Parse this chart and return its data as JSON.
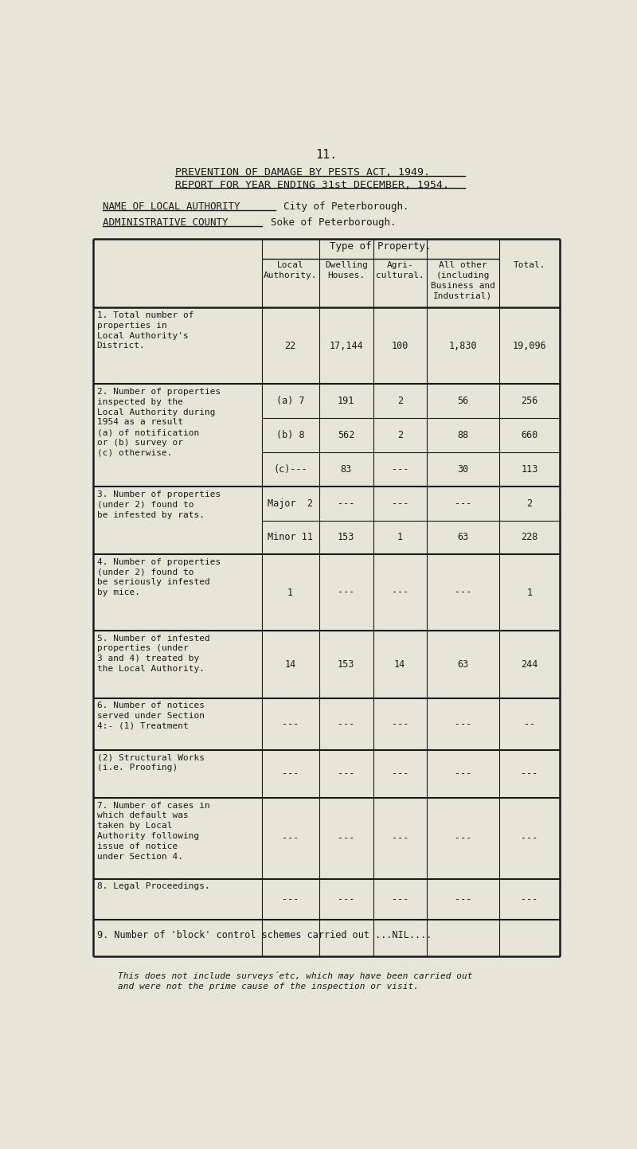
{
  "page_number": "11.",
  "title_line1": "PREVENTION OF DAMAGE BY PESTS ACT, 1949.",
  "title_line2": "REPORT FOR YEAR ENDING 31st DECEMBER, 1954.",
  "name_label": "NAME OF LOCAL AUTHORITY",
  "name_value": "City of Peterborough.",
  "county_label": "ADMINISTRATIVE COUNTY",
  "county_value": "Soke of Peterborough.",
  "col_headers": [
    "Local\nAuthority.",
    "Dwelling\nHouses.",
    "Agri-\ncultural.",
    "All other\n(including\nBusiness and\nIndustrial)",
    "Total."
  ],
  "type_of_property_label": "Type of Property.",
  "bg_color": "#e8e4d8",
  "text_color": "#1a1a1a",
  "footnote_line1": "This does not include surveys",
  "footnote": "This does not include surveys´etc, which may have been carried out\nand were not the prime cause of the inspection or visit.",
  "rows": [
    {
      "number": "1.",
      "label": "Total number of\nproperties in\nLocal Authority's\nDistrict.",
      "subrows": [
        {
          "sub_label": "22",
          "values": [
            "17,144",
            "100",
            "1,830",
            "19,096"
          ]
        }
      ]
    },
    {
      "number": "2.",
      "label": "Number of properties\ninspected by the\nLocal Authority during\n1954 as a result\n(a) of notification\nor (b) survey or\n(c) otherwise.",
      "subrows": [
        {
          "sub_label": "(a) 7",
          "values": [
            "191",
            "2",
            "56",
            "256"
          ]
        },
        {
          "sub_label": "(b) 8",
          "values": [
            "562",
            "2",
            "88",
            "660"
          ]
        },
        {
          "sub_label": "(c)---",
          "values": [
            "83",
            "---",
            "30",
            "113"
          ]
        }
      ]
    },
    {
      "number": "3.",
      "label": "Number of properties\n(under 2) found to\nbe infested by rats.",
      "subrows": [
        {
          "sub_label": "Major  2",
          "values": [
            "---",
            "---",
            "---",
            "2"
          ]
        },
        {
          "sub_label": "Minor 11",
          "values": [
            "153",
            "1",
            "63",
            "228"
          ]
        }
      ]
    },
    {
      "number": "4.",
      "label": "Number of properties\n(under 2) found to\nbe seriously infested\nby mice.",
      "subrows": [
        {
          "sub_label": "1",
          "values": [
            "---",
            "---",
            "---",
            "1"
          ]
        }
      ]
    },
    {
      "number": "5.",
      "label": "Number of infested\nproperties (under\n3 and 4) treated by\nthe Local Authority.",
      "subrows": [
        {
          "sub_label": "14",
          "values": [
            "153",
            "14",
            "63",
            "244"
          ]
        }
      ]
    },
    {
      "number": "6.",
      "label": "Number of notices\nserved under Section\n4:- (1) Treatment",
      "subrows": [
        {
          "sub_label": "---",
          "values": [
            "---",
            "---",
            "---",
            "--"
          ]
        }
      ]
    },
    {
      "number": "",
      "label": "(2) Structural Works\n(i.e. Proofing)",
      "subrows": [
        {
          "sub_label": "---",
          "values": [
            "---",
            "---",
            "---",
            "---"
          ]
        }
      ]
    },
    {
      "number": "7.",
      "label": "Number of cases in\nwhich default was\ntaken by Local\nAuthority following\nissue of notice\nunder Section 4.",
      "subrows": [
        {
          "sub_label": "---",
          "values": [
            "---",
            "---",
            "---",
            "---"
          ]
        }
      ]
    },
    {
      "number": "8.",
      "label": "Legal Proceedings.",
      "subrows": [
        {
          "sub_label": "---",
          "values": [
            "---",
            "---",
            "---",
            "---"
          ]
        }
      ]
    },
    {
      "number": "9.",
      "label": "Number of 'block' control schemes carried out ...NIL....",
      "subrows": []
    }
  ]
}
